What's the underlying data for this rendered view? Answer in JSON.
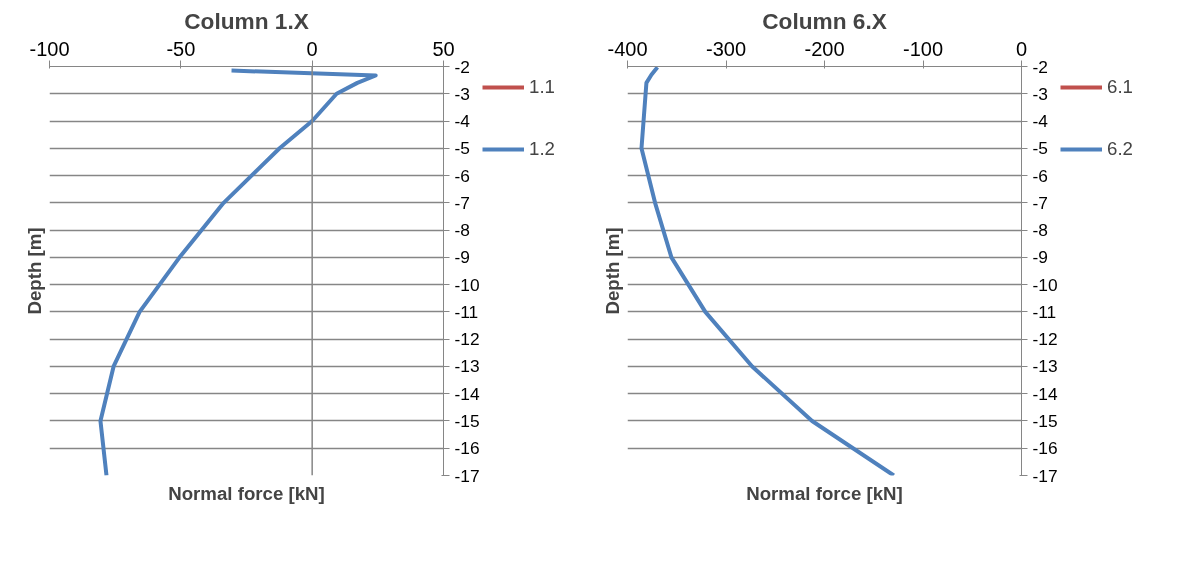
{
  "chart_data": [
    {
      "type": "line",
      "title": "Column 1.X",
      "xlabel": "Normal force [kN]",
      "ylabel": "Depth [m]",
      "xlim": [
        -100,
        50
      ],
      "xticks": [
        -100,
        -50,
        0,
        50
      ],
      "ylim": [
        -17,
        -2
      ],
      "yticks": [
        -17,
        -16,
        -15,
        -14,
        -13,
        -12,
        -11,
        -10,
        -9,
        -8,
        -7,
        -6,
        -5,
        -4,
        -3,
        -2
      ],
      "grid": "y",
      "legend": "right",
      "ref_lines": [
        {
          "axis": "x",
          "value": 0,
          "color": "#868686"
        }
      ],
      "series": [
        {
          "name": "1.1",
          "color": "#c0504d"
        },
        {
          "name": "1.2",
          "color": "#4f81bd",
          "x": [
            -30.7,
            24.2,
            17.2,
            9.3,
            0,
            -12.4,
            -33.7,
            -50.5,
            -65.7,
            -75.6,
            -80.6,
            -78.3
          ],
          "values": [
            -2.15,
            -2.33,
            -2.6,
            -3,
            -4,
            -5,
            -7,
            -9,
            -11,
            -13,
            -15,
            -17
          ]
        }
      ]
    },
    {
      "type": "line",
      "title": "Column 6.X",
      "xlabel": "Normal force [kN]",
      "ylabel": "Depth [m]",
      "xlim": [
        -400,
        0
      ],
      "xticks": [
        -400,
        -300,
        -200,
        -100,
        0
      ],
      "ylim": [
        -17,
        -2
      ],
      "yticks": [
        -17,
        -16,
        -15,
        -14,
        -13,
        -12,
        -11,
        -10,
        -9,
        -8,
        -7,
        -6,
        -5,
        -4,
        -3,
        -2
      ],
      "grid": "y",
      "legend": "right",
      "series": [
        {
          "name": "6.1",
          "color": "#c0504d"
        },
        {
          "name": "6.2",
          "color": "#4f81bd",
          "x": [
            -369.6,
            -375.7,
            -380.8,
            -385.8,
            -372,
            -355.4,
            -321,
            -273.4,
            -212.6,
            -129.6
          ],
          "values": [
            -2.03,
            -2.3,
            -2.6,
            -5,
            -7,
            -9,
            -11,
            -13,
            -15,
            -17
          ]
        }
      ]
    }
  ]
}
